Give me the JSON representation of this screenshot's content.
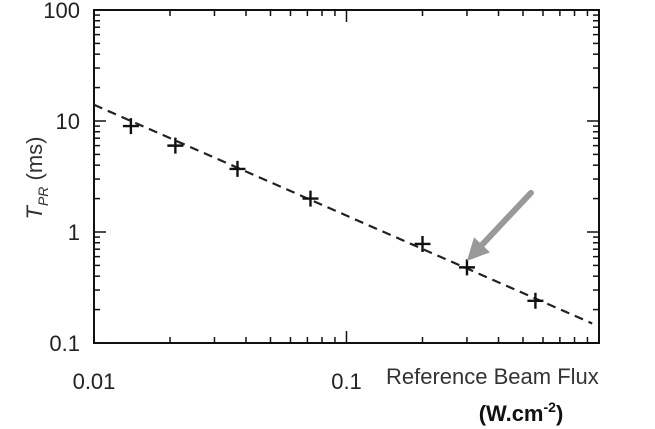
{
  "chart_data": {
    "type": "scatter",
    "x_scale": "log",
    "y_scale": "log",
    "xlim": [
      0.01,
      1
    ],
    "ylim": [
      0.1,
      100
    ],
    "x_ticks": [
      {
        "value": 0.01,
        "label": "0.01"
      },
      {
        "value": 0.1,
        "label": "0.1"
      }
    ],
    "y_ticks": [
      {
        "value": 100,
        "label": "100"
      },
      {
        "value": 10,
        "label": "10"
      },
      {
        "value": 1,
        "label": "1"
      },
      {
        "value": 0.1,
        "label": "0.1"
      }
    ],
    "xlabel": "Reference Beam Flux",
    "xlabel_units": {
      "base": "(W.cm",
      "sup": "-2",
      "tail": ")"
    },
    "ylabel": {
      "symbol": "T",
      "subscript": "PR",
      "units": " (ms)"
    },
    "grid": false,
    "markers": "plus",
    "points": [
      {
        "x": 0.014,
        "y": 9.0
      },
      {
        "x": 0.021,
        "y": 6.0
      },
      {
        "x": 0.037,
        "y": 3.7
      },
      {
        "x": 0.072,
        "y": 2.0
      },
      {
        "x": 0.2,
        "y": 0.78
      },
      {
        "x": 0.3,
        "y": 0.48
      },
      {
        "x": 0.56,
        "y": 0.24
      }
    ],
    "fit_line": {
      "style": "dashed",
      "color": "#222222",
      "points": [
        [
          0.01,
          14.0
        ],
        [
          0.94,
          0.15
        ]
      ]
    },
    "annotation": {
      "type": "arrow",
      "color": "#999999",
      "points_to": {
        "x": 0.3,
        "y": 0.55
      }
    }
  }
}
